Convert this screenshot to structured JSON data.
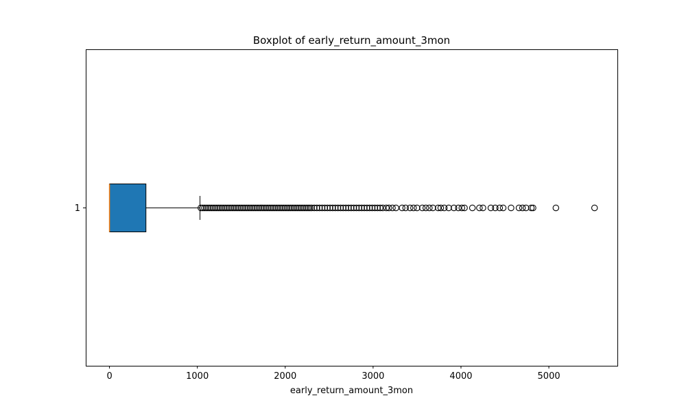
{
  "chart_data": {
    "type": "boxplot",
    "orientation": "horizontal",
    "title": "Boxplot of early_return_amount_3mon",
    "xlabel": "early_return_amount_3mon",
    "ylabel": "",
    "xlim": [
      -270,
      5780
    ],
    "xticks": [
      0,
      1000,
      2000,
      3000,
      4000,
      5000
    ],
    "ytick_labels": [
      "1"
    ],
    "colors": {
      "box_fill": "#1f77b4",
      "median": "#ff7f0e",
      "lines": "#000000",
      "flier_edge": "#000000"
    },
    "boxes": [
      {
        "label": "1",
        "whisker_low": 0,
        "q1": 0,
        "median": 0,
        "q3": 415,
        "whisker_high": 1030,
        "fliers": [
          1040,
          1060,
          1080,
          1100,
          1120,
          1140,
          1160,
          1180,
          1200,
          1220,
          1240,
          1260,
          1280,
          1300,
          1320,
          1340,
          1360,
          1380,
          1400,
          1420,
          1440,
          1460,
          1480,
          1500,
          1520,
          1540,
          1560,
          1580,
          1600,
          1620,
          1640,
          1660,
          1680,
          1700,
          1720,
          1740,
          1760,
          1780,
          1800,
          1820,
          1840,
          1860,
          1880,
          1900,
          1920,
          1940,
          1960,
          1980,
          2000,
          2020,
          2040,
          2060,
          2080,
          2100,
          2120,
          2140,
          2160,
          2180,
          2200,
          2220,
          2240,
          2260,
          2280,
          2300,
          2330,
          2360,
          2390,
          2420,
          2450,
          2480,
          2510,
          2540,
          2570,
          2600,
          2630,
          2660,
          2690,
          2720,
          2750,
          2780,
          2810,
          2840,
          2870,
          2900,
          2930,
          2960,
          2990,
          3020,
          3050,
          3080,
          3110,
          3150,
          3180,
          3220,
          3260,
          3330,
          3370,
          3420,
          3460,
          3500,
          3560,
          3600,
          3640,
          3680,
          3740,
          3770,
          3810,
          3860,
          3920,
          3970,
          4010,
          4040,
          4130,
          4210,
          4250,
          4340,
          4390,
          4440,
          4480,
          4570,
          4660,
          4700,
          4740,
          4800,
          4820,
          5080,
          5520
        ]
      }
    ]
  }
}
